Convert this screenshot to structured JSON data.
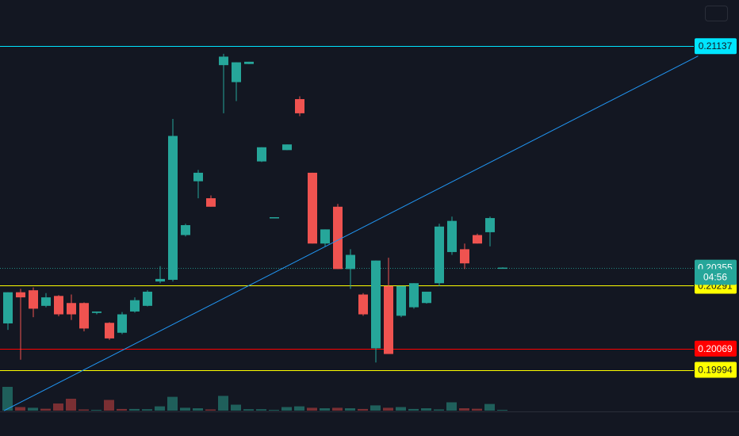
{
  "chart_data": {
    "type": "candlestick",
    "y_range": [
      0.1985,
      0.213
    ],
    "price_levels": [
      {
        "name": "resistance",
        "value": 0.21137,
        "label": "0.21137",
        "color": "#00e5ff",
        "text_color": "#131722"
      },
      {
        "name": "last-price",
        "value": 0.20355,
        "label": "0.20355",
        "color": "#26a69a",
        "text_color": "#ffffff",
        "dotted": true
      },
      {
        "name": "upper-support",
        "value": 0.20291,
        "label": "0.20291",
        "color": "#ffff00",
        "text_color": "#131722"
      },
      {
        "name": "red-level",
        "value": 0.20069,
        "label": "0.20069",
        "color": "#ff0000",
        "text_color": "#ffffff"
      },
      {
        "name": "lower-support",
        "value": 0.19994,
        "label": "0.19994",
        "color": "#ffff00",
        "text_color": "#131722"
      }
    ],
    "countdown": {
      "label": "04:56",
      "value": 0.20322,
      "color": "#26a69a"
    },
    "trendline": {
      "color": "#2196f3",
      "start": {
        "index": -0.3,
        "price": 0.1985
      },
      "end": {
        "index": 54.4,
        "price": 0.21102
      }
    },
    "candles": [
      {
        "o": 0.20158,
        "h": 0.20268,
        "l": 0.20135,
        "c": 0.20268
      },
      {
        "o": 0.20268,
        "h": 0.2028,
        "l": 0.2003,
        "c": 0.2025
      },
      {
        "o": 0.20275,
        "h": 0.20285,
        "l": 0.2018,
        "c": 0.2021
      },
      {
        "o": 0.2022,
        "h": 0.20265,
        "l": 0.20215,
        "c": 0.2025
      },
      {
        "o": 0.20255,
        "h": 0.20258,
        "l": 0.20183,
        "c": 0.2019
      },
      {
        "o": 0.2023,
        "h": 0.2026,
        "l": 0.2017,
        "c": 0.2019
      },
      {
        "o": 0.2023,
        "h": 0.20232,
        "l": 0.2013,
        "c": 0.2014
      },
      {
        "o": 0.20195,
        "h": 0.202,
        "l": 0.2019,
        "c": 0.202
      },
      {
        "o": 0.2016,
        "h": 0.20162,
        "l": 0.201,
        "c": 0.20105
      },
      {
        "o": 0.20125,
        "h": 0.20198,
        "l": 0.2012,
        "c": 0.2019
      },
      {
        "o": 0.202,
        "h": 0.2025,
        "l": 0.20196,
        "c": 0.2024
      },
      {
        "o": 0.2022,
        "h": 0.20275,
        "l": 0.20218,
        "c": 0.2027
      },
      {
        "o": 0.20306,
        "h": 0.2036,
        "l": 0.203,
        "c": 0.20315
      },
      {
        "o": 0.20312,
        "h": 0.2088,
        "l": 0.20306,
        "c": 0.2082
      },
      {
        "o": 0.2047,
        "h": 0.2051,
        "l": 0.20465,
        "c": 0.20505
      },
      {
        "o": 0.2066,
        "h": 0.207,
        "l": 0.206,
        "c": 0.2069
      },
      {
        "o": 0.206,
        "h": 0.2061,
        "l": 0.2057,
        "c": 0.2057
      },
      {
        "o": 0.2107,
        "h": 0.2111,
        "l": 0.209,
        "c": 0.211
      },
      {
        "o": 0.2101,
        "h": 0.2108,
        "l": 0.20943,
        "c": 0.2108
      },
      {
        "o": 0.21074,
        "h": 0.21082,
        "l": 0.21074,
        "c": 0.21082
      },
      {
        "o": 0.2073,
        "h": 0.2078,
        "l": 0.20728,
        "c": 0.2078
      },
      {
        "o": 0.2053,
        "h": 0.20533,
        "l": 0.2053,
        "c": 0.20533
      },
      {
        "o": 0.2077,
        "h": 0.2079,
        "l": 0.2077,
        "c": 0.2079
      },
      {
        "o": 0.2095,
        "h": 0.2096,
        "l": 0.2089,
        "c": 0.209
      },
      {
        "o": 0.2069,
        "h": 0.2069,
        "l": 0.2044,
        "c": 0.2044
      },
      {
        "o": 0.2044,
        "h": 0.2049,
        "l": 0.2043,
        "c": 0.2049
      },
      {
        "o": 0.2057,
        "h": 0.2058,
        "l": 0.2035,
        "c": 0.2035
      },
      {
        "o": 0.2035,
        "h": 0.2042,
        "l": 0.2028,
        "c": 0.204
      },
      {
        "o": 0.2026,
        "h": 0.20265,
        "l": 0.20185,
        "c": 0.2019
      },
      {
        "o": 0.2007,
        "h": 0.2038,
        "l": 0.2002,
        "c": 0.2038
      },
      {
        "o": 0.2029,
        "h": 0.2039,
        "l": 0.2005,
        "c": 0.2005
      },
      {
        "o": 0.20185,
        "h": 0.2029,
        "l": 0.2018,
        "c": 0.2029
      },
      {
        "o": 0.20215,
        "h": 0.203,
        "l": 0.2021,
        "c": 0.203
      },
      {
        "o": 0.2023,
        "h": 0.2027,
        "l": 0.20228,
        "c": 0.2027
      },
      {
        "o": 0.203,
        "h": 0.2051,
        "l": 0.2029,
        "c": 0.205
      },
      {
        "o": 0.2041,
        "h": 0.20535,
        "l": 0.204,
        "c": 0.2052
      },
      {
        "o": 0.2042,
        "h": 0.2044,
        "l": 0.2035,
        "c": 0.2037
      },
      {
        "o": 0.2047,
        "h": 0.20475,
        "l": 0.2044,
        "c": 0.2044
      },
      {
        "o": 0.2048,
        "h": 0.20535,
        "l": 0.2043,
        "c": 0.2053
      },
      {
        "o": 0.20355,
        "h": 0.20356,
        "l": 0.20354,
        "c": 0.20355
      }
    ],
    "volume": [
      {
        "v": 1.0,
        "dir": "up"
      },
      {
        "v": 0.15,
        "dir": "down"
      },
      {
        "v": 0.12,
        "dir": "up"
      },
      {
        "v": 0.08,
        "dir": "down"
      },
      {
        "v": 0.3,
        "dir": "down"
      },
      {
        "v": 0.5,
        "dir": "down"
      },
      {
        "v": 0.05,
        "dir": "down"
      },
      {
        "v": 0.02,
        "dir": "up"
      },
      {
        "v": 0.45,
        "dir": "down"
      },
      {
        "v": 0.07,
        "dir": "down"
      },
      {
        "v": 0.07,
        "dir": "up"
      },
      {
        "v": 0.06,
        "dir": "up"
      },
      {
        "v": 0.18,
        "dir": "up"
      },
      {
        "v": 0.58,
        "dir": "up"
      },
      {
        "v": 0.12,
        "dir": "up"
      },
      {
        "v": 0.1,
        "dir": "up"
      },
      {
        "v": 0.05,
        "dir": "down"
      },
      {
        "v": 0.62,
        "dir": "up"
      },
      {
        "v": 0.25,
        "dir": "up"
      },
      {
        "v": 0.06,
        "dir": "up"
      },
      {
        "v": 0.06,
        "dir": "up"
      },
      {
        "v": 0.03,
        "dir": "up"
      },
      {
        "v": 0.15,
        "dir": "up"
      },
      {
        "v": 0.18,
        "dir": "up"
      },
      {
        "v": 0.12,
        "dir": "down"
      },
      {
        "v": 0.1,
        "dir": "up"
      },
      {
        "v": 0.12,
        "dir": "down"
      },
      {
        "v": 0.1,
        "dir": "up"
      },
      {
        "v": 0.07,
        "dir": "down"
      },
      {
        "v": 0.22,
        "dir": "up"
      },
      {
        "v": 0.12,
        "dir": "down"
      },
      {
        "v": 0.15,
        "dir": "up"
      },
      {
        "v": 0.07,
        "dir": "up"
      },
      {
        "v": 0.1,
        "dir": "up"
      },
      {
        "v": 0.05,
        "dir": "up"
      },
      {
        "v": 0.35,
        "dir": "up"
      },
      {
        "v": 0.1,
        "dir": "down"
      },
      {
        "v": 0.08,
        "dir": "down"
      },
      {
        "v": 0.28,
        "dir": "up"
      },
      {
        "v": 0.03,
        "dir": "up"
      }
    ],
    "colors": {
      "up": "#26a69a",
      "down": "#ef5350",
      "vol_up": "#1f5f5b",
      "vol_down": "#7a2f33",
      "background": "#131722"
    }
  }
}
